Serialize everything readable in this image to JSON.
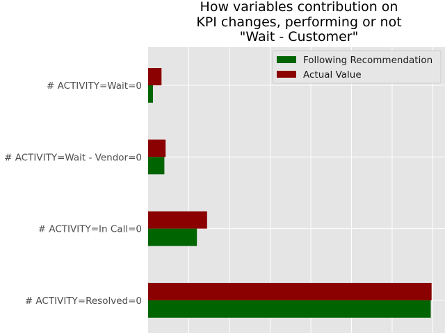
{
  "chart_data": {
    "type": "bar",
    "orientation": "horizontal",
    "title_lines": [
      "How variables contribution on",
      "KPI changes, performing or not",
      "\"Wait - Customer\""
    ],
    "xlabel": "",
    "ylabel": "",
    "categories": [
      "# ACTIVITY=Wait=0",
      "# ACTIVITY=Wait - Vendor=0",
      "# ACTIVITY=In Call=0",
      "# ACTIVITY=Resolved=0"
    ],
    "series": [
      {
        "name": "Following Recommendation",
        "color": "#006400",
        "values": [
          0.012,
          0.04,
          0.12,
          0.695
        ]
      },
      {
        "name": "Actual Value",
        "color": "#8b0000",
        "values": [
          0.033,
          0.043,
          0.145,
          0.697
        ]
      }
    ],
    "xlim": [
      0,
      0.73
    ],
    "x_gridlines": [
      0.1,
      0.2,
      0.3,
      0.4,
      0.5,
      0.6,
      0.7
    ],
    "grid": true,
    "legend_position": "top-right",
    "style": {
      "background": "#e5e5e5",
      "grid_color": "#ffffff"
    }
  }
}
